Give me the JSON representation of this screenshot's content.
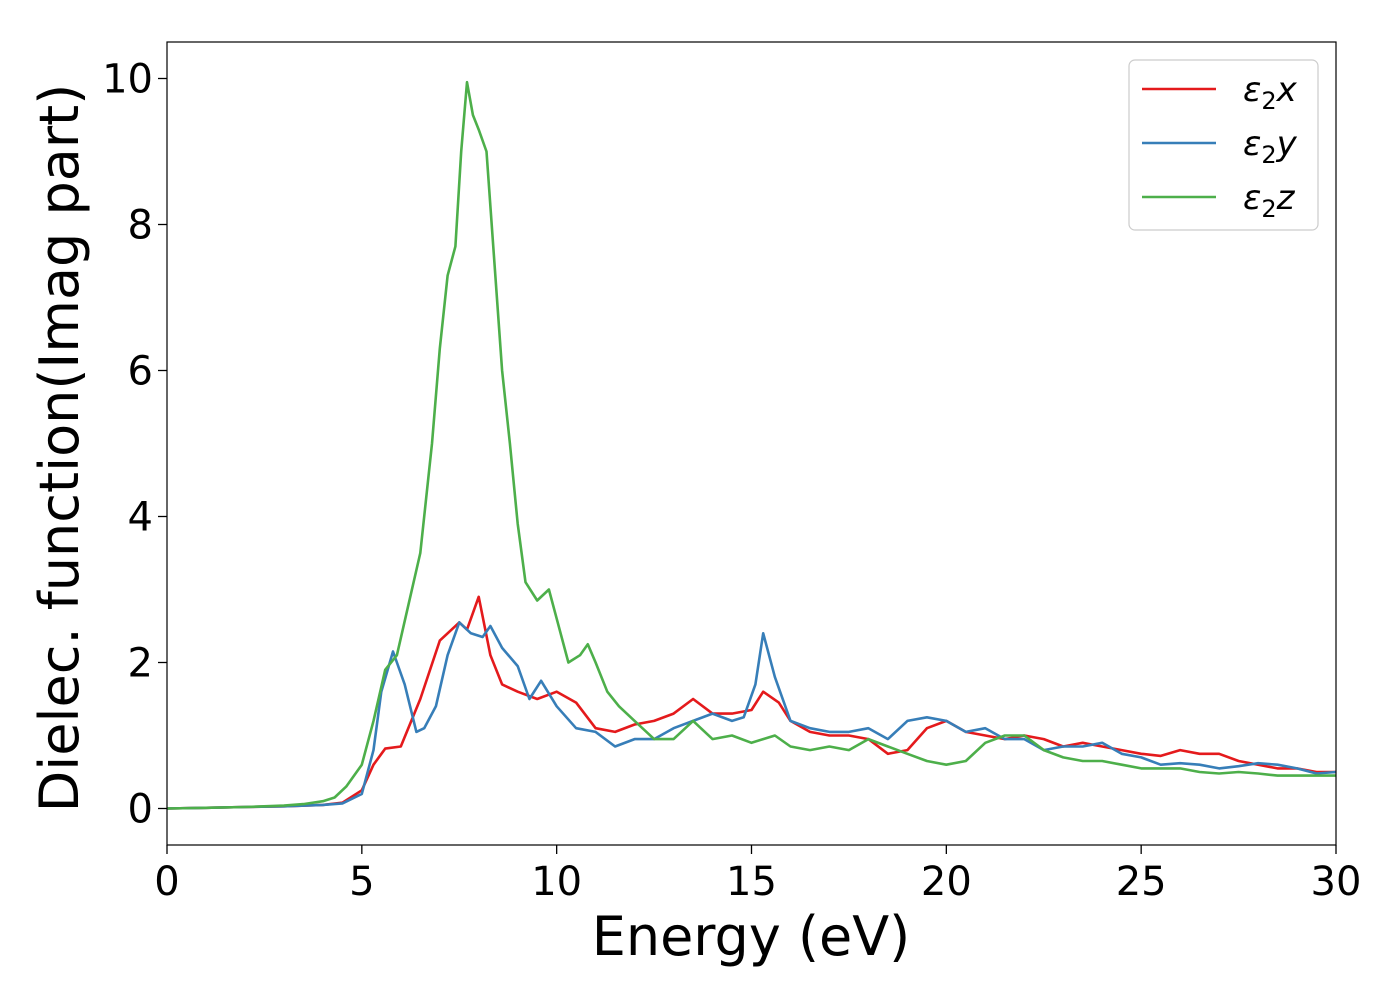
{
  "chart_data": {
    "type": "line",
    "title": "",
    "xlabel": "Energy (eV)",
    "ylabel": "Dielec. function(Imag part)",
    "xlim": [
      0,
      30
    ],
    "ylim": [
      -0.5,
      10.5
    ],
    "xticks": [
      "0",
      "5",
      "10",
      "15",
      "20",
      "25",
      "30"
    ],
    "yticks": [
      "0",
      "2",
      "4",
      "6",
      "8",
      "10"
    ],
    "grid": false,
    "legend_position": "top-right",
    "series": [
      {
        "name": "ε2x",
        "legend_main": "ε",
        "legend_sub": "2",
        "legend_suffix": "x",
        "color": "#e41a1c",
        "x": [
          0,
          1,
          2,
          3,
          4,
          4.5,
          5,
          5.3,
          5.6,
          6.0,
          6.5,
          7.0,
          7.5,
          7.7,
          8.0,
          8.3,
          8.6,
          9.0,
          9.5,
          10.0,
          10.5,
          11.0,
          11.5,
          12.0,
          12.5,
          13.0,
          13.5,
          14.0,
          14.5,
          15.0,
          15.3,
          15.7,
          16.0,
          16.5,
          17.0,
          17.5,
          18.0,
          18.5,
          19.0,
          19.5,
          20.0,
          20.5,
          21.0,
          21.5,
          22.0,
          22.5,
          23.0,
          23.5,
          24.0,
          24.5,
          25.0,
          25.5,
          26.0,
          26.5,
          27.0,
          27.5,
          28.0,
          28.5,
          29.0,
          29.5,
          30.0
        ],
        "y": [
          0,
          0.01,
          0.02,
          0.03,
          0.05,
          0.08,
          0.25,
          0.6,
          0.82,
          0.85,
          1.5,
          2.3,
          2.55,
          2.45,
          2.9,
          2.1,
          1.7,
          1.6,
          1.5,
          1.6,
          1.45,
          1.1,
          1.05,
          1.15,
          1.2,
          1.3,
          1.5,
          1.3,
          1.3,
          1.35,
          1.6,
          1.45,
          1.2,
          1.05,
          1.0,
          1.0,
          0.95,
          0.75,
          0.8,
          1.1,
          1.2,
          1.05,
          1.0,
          0.95,
          1.0,
          0.95,
          0.85,
          0.9,
          0.85,
          0.8,
          0.75,
          0.72,
          0.8,
          0.75,
          0.75,
          0.65,
          0.6,
          0.55,
          0.55,
          0.5,
          0.5
        ]
      },
      {
        "name": "ε2y",
        "legend_main": "ε",
        "legend_sub": "2",
        "legend_suffix": "y",
        "color": "#377eb8",
        "x": [
          0,
          1,
          2,
          3,
          4,
          4.5,
          5,
          5.3,
          5.5,
          5.8,
          6.1,
          6.4,
          6.6,
          6.9,
          7.2,
          7.5,
          7.8,
          8.1,
          8.3,
          8.6,
          9.0,
          9.3,
          9.6,
          10.0,
          10.5,
          11.0,
          11.5,
          12.0,
          12.5,
          13.0,
          13.5,
          14.0,
          14.5,
          14.8,
          15.1,
          15.3,
          15.6,
          16.0,
          16.5,
          17.0,
          17.5,
          18.0,
          18.5,
          19.0,
          19.5,
          20.0,
          20.5,
          21.0,
          21.5,
          22.0,
          22.5,
          23.0,
          23.5,
          24.0,
          24.5,
          25.0,
          25.5,
          26.0,
          26.5,
          27.0,
          27.5,
          28.0,
          28.5,
          29.0,
          29.5,
          30.0
        ],
        "y": [
          0,
          0.01,
          0.02,
          0.03,
          0.05,
          0.07,
          0.2,
          0.8,
          1.6,
          2.15,
          1.7,
          1.05,
          1.1,
          1.4,
          2.1,
          2.55,
          2.4,
          2.35,
          2.5,
          2.2,
          1.95,
          1.5,
          1.75,
          1.4,
          1.1,
          1.05,
          0.85,
          0.95,
          0.95,
          1.1,
          1.2,
          1.3,
          1.2,
          1.25,
          1.7,
          2.4,
          1.8,
          1.2,
          1.1,
          1.05,
          1.05,
          1.1,
          0.95,
          1.2,
          1.25,
          1.2,
          1.05,
          1.1,
          0.95,
          0.95,
          0.8,
          0.85,
          0.85,
          0.9,
          0.75,
          0.7,
          0.6,
          0.62,
          0.6,
          0.55,
          0.58,
          0.62,
          0.6,
          0.55,
          0.48,
          0.5
        ]
      },
      {
        "name": "ε2z",
        "legend_main": "ε",
        "legend_sub": "2",
        "legend_suffix": "z",
        "color": "#4daf4a",
        "x": [
          0,
          1,
          2,
          3,
          3.5,
          4,
          4.3,
          4.6,
          5.0,
          5.3,
          5.6,
          5.9,
          6.2,
          6.5,
          6.8,
          7.0,
          7.2,
          7.4,
          7.55,
          7.7,
          7.85,
          8.0,
          8.2,
          8.4,
          8.6,
          8.8,
          9.0,
          9.2,
          9.5,
          9.8,
          10.0,
          10.3,
          10.6,
          10.8,
          11.0,
          11.3,
          11.6,
          12.0,
          12.5,
          13.0,
          13.5,
          14.0,
          14.5,
          15.0,
          15.3,
          15.6,
          16.0,
          16.5,
          17.0,
          17.5,
          18.0,
          18.5,
          19.0,
          19.5,
          20.0,
          20.5,
          21.0,
          21.5,
          22.0,
          22.5,
          23.0,
          23.5,
          24.0,
          24.5,
          25.0,
          25.5,
          26.0,
          26.5,
          27.0,
          27.5,
          28.0,
          28.5,
          29.0,
          29.5,
          30.0
        ],
        "y": [
          0,
          0.01,
          0.02,
          0.04,
          0.06,
          0.1,
          0.15,
          0.3,
          0.6,
          1.2,
          1.9,
          2.1,
          2.8,
          3.5,
          5.0,
          6.3,
          7.3,
          7.7,
          9.0,
          9.95,
          9.5,
          9.3,
          9.0,
          7.5,
          6.0,
          5.0,
          3.9,
          3.1,
          2.85,
          3.0,
          2.6,
          2.0,
          2.1,
          2.25,
          2.0,
          1.6,
          1.4,
          1.2,
          0.95,
          0.95,
          1.2,
          0.95,
          1.0,
          0.9,
          0.95,
          1.0,
          0.85,
          0.8,
          0.85,
          0.8,
          0.95,
          0.85,
          0.75,
          0.65,
          0.6,
          0.65,
          0.9,
          1.0,
          1.0,
          0.8,
          0.7,
          0.65,
          0.65,
          0.6,
          0.55,
          0.55,
          0.55,
          0.5,
          0.48,
          0.5,
          0.48,
          0.45,
          0.45,
          0.45,
          0.45
        ]
      }
    ]
  }
}
